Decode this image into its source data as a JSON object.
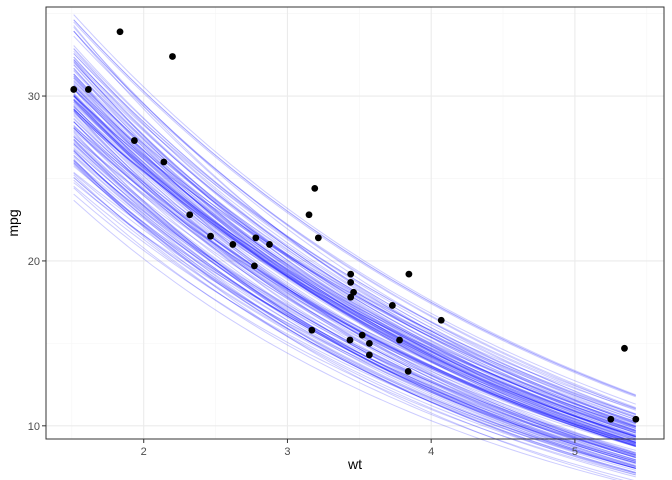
{
  "chart_data": {
    "type": "scatter",
    "xlabel": "wt",
    "ylabel": "mpg",
    "xlim": [
      1.32,
      5.62
    ],
    "ylim": [
      9.2,
      35.4
    ],
    "x_ticks": [
      2,
      3,
      4,
      5
    ],
    "y_ticks": [
      10,
      20,
      30
    ],
    "grid": true,
    "legend": "none",
    "colors": {
      "points": "#000000",
      "curves": "#0000ff",
      "panel_border": "#333333",
      "grid_major": "#ebebeb",
      "grid_minor": "#f5f5f5",
      "tick_text": "#4d4d4d"
    },
    "points": [
      {
        "x": 2.62,
        "y": 21.0
      },
      {
        "x": 2.875,
        "y": 21.0
      },
      {
        "x": 2.32,
        "y": 22.8
      },
      {
        "x": 3.215,
        "y": 21.4
      },
      {
        "x": 3.44,
        "y": 18.7
      },
      {
        "x": 3.46,
        "y": 18.1
      },
      {
        "x": 3.57,
        "y": 14.3
      },
      {
        "x": 3.19,
        "y": 24.4
      },
      {
        "x": 3.15,
        "y": 22.8
      },
      {
        "x": 3.44,
        "y": 19.2
      },
      {
        "x": 3.44,
        "y": 17.8
      },
      {
        "x": 4.07,
        "y": 16.4
      },
      {
        "x": 3.73,
        "y": 17.3
      },
      {
        "x": 3.78,
        "y": 15.2
      },
      {
        "x": 5.25,
        "y": 10.4
      },
      {
        "x": 5.424,
        "y": 10.4
      },
      {
        "x": 5.345,
        "y": 14.7
      },
      {
        "x": 2.2,
        "y": 32.4
      },
      {
        "x": 1.615,
        "y": 30.4
      },
      {
        "x": 1.835,
        "y": 33.9
      },
      {
        "x": 2.465,
        "y": 21.5
      },
      {
        "x": 3.52,
        "y": 15.5
      },
      {
        "x": 3.435,
        "y": 15.2
      },
      {
        "x": 3.84,
        "y": 13.3
      },
      {
        "x": 3.845,
        "y": 19.2
      },
      {
        "x": 1.935,
        "y": 27.3
      },
      {
        "x": 2.14,
        "y": 26.0
      },
      {
        "x": 1.513,
        "y": 30.4
      },
      {
        "x": 3.17,
        "y": 15.8
      },
      {
        "x": 2.77,
        "y": 19.7
      },
      {
        "x": 3.57,
        "y": 15.0
      },
      {
        "x": 2.78,
        "y": 21.4
      }
    ],
    "curves": {
      "model": "mpg = exp(a + b*wt)",
      "count": 150,
      "x_range": [
        1.513,
        5.424
      ],
      "center": {
        "a": 3.8319,
        "b": -0.3044
      },
      "opacity": 0.2
    }
  }
}
